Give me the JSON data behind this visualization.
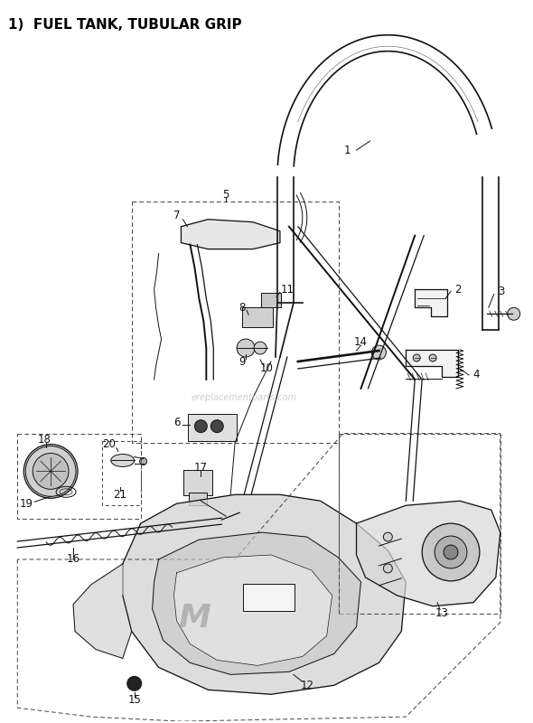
{
  "title": "1)  FUEL TANK, TUBULAR GRIP",
  "title_fontsize": 11,
  "title_fontweight": "bold",
  "bg_color": "#ffffff",
  "line_color": "#111111",
  "dashed_color": "#444444",
  "watermark": "ereplacementparts.com",
  "watermark_color": "#bbbbbb",
  "fig_width": 5.9,
  "fig_height": 8.0,
  "dpi": 100
}
